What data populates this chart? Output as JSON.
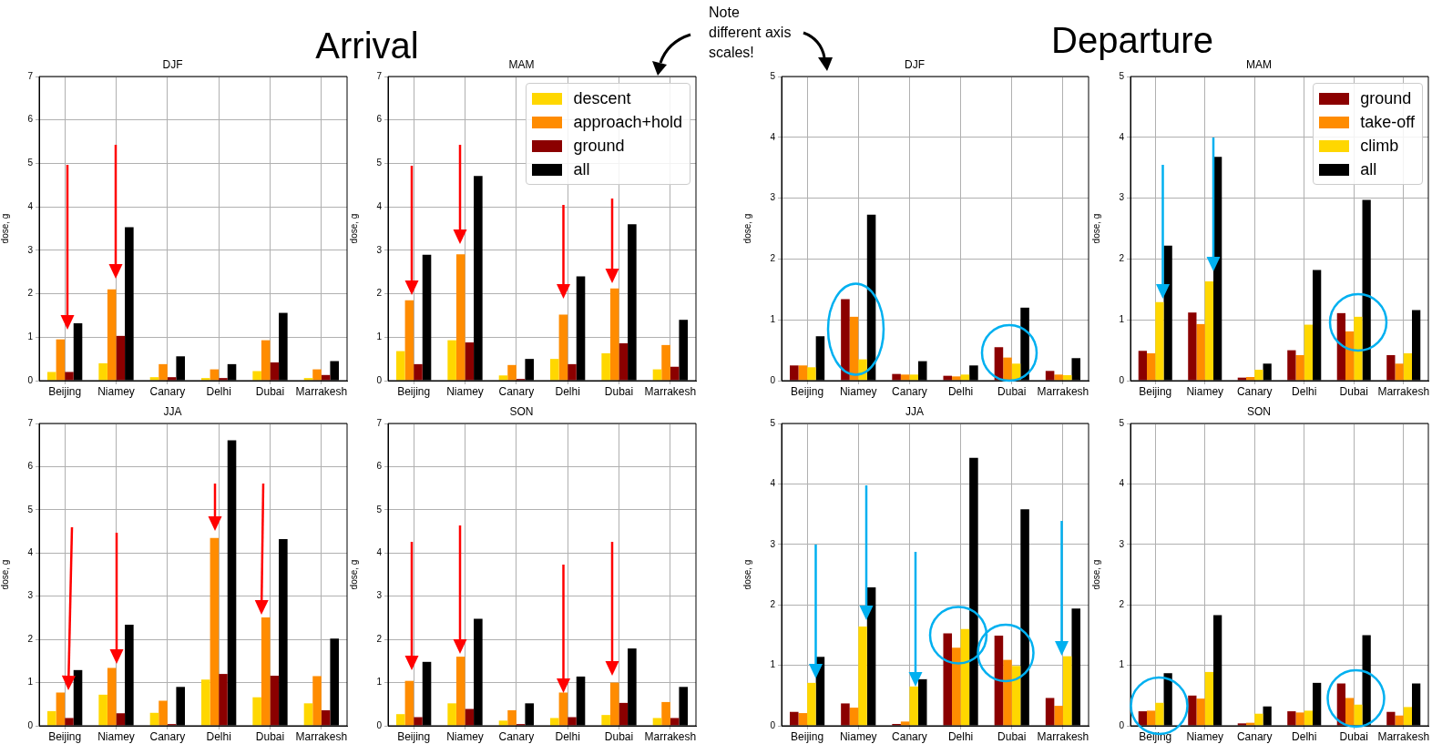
{
  "chart_data": [
    {
      "type": "bar",
      "title": "DJF",
      "ylabel": "dose, g",
      "categories": [
        "Beijing",
        "Niamey",
        "Canary",
        "Delhi",
        "Dubai",
        "Marrakesh"
      ],
      "ylim": [
        0,
        7
      ],
      "yticks": [
        0,
        1,
        2,
        3,
        4,
        5,
        6,
        7
      ],
      "grid": true,
      "annotations": [
        "Arrival"
      ],
      "series": [
        {
          "color": "#ffd700",
          "values": [
            0.2,
            0.4,
            0.08,
            0.06,
            0.22,
            0.06
          ]
        },
        {
          "color": "#ff8c00",
          "values": [
            0.95,
            2.1,
            0.38,
            0.26,
            0.93,
            0.26
          ]
        },
        {
          "color": "#8b0000",
          "values": [
            0.2,
            1.03,
            0.08,
            0.06,
            0.42,
            0.13
          ]
        },
        {
          "color": "#000000",
          "values": [
            1.32,
            3.53,
            0.56,
            0.38,
            1.56,
            0.45
          ]
        }
      ]
    },
    {
      "type": "bar",
      "title": "MAM",
      "ylabel": "dose, g",
      "categories": [
        "Beijing",
        "Niamey",
        "Canary",
        "Delhi",
        "Dubai",
        "Marrakesh"
      ],
      "ylim": [
        0,
        7
      ],
      "yticks": [
        0,
        1,
        2,
        3,
        4,
        5,
        6,
        7
      ],
      "grid": true,
      "legend": "top right",
      "annotations": [
        "Note different axis scales!"
      ],
      "series": [
        {
          "name": "descent",
          "color": "#ffd700",
          "values": [
            0.68,
            0.93,
            0.12,
            0.5,
            0.63,
            0.26
          ]
        },
        {
          "name": "approach+hold",
          "color": "#ff8c00",
          "values": [
            1.85,
            2.91,
            0.36,
            1.52,
            2.12,
            0.82
          ]
        },
        {
          "name": "ground",
          "color": "#8b0000",
          "values": [
            0.38,
            0.88,
            0.04,
            0.38,
            0.86,
            0.32
          ]
        },
        {
          "name": "all",
          "color": "#000000",
          "values": [
            2.9,
            4.71,
            0.5,
            2.4,
            3.6,
            1.4
          ]
        }
      ]
    },
    {
      "type": "bar",
      "title": "DJF",
      "ylabel": "dose, g",
      "categories": [
        "Beijing",
        "Niamey",
        "Canary",
        "Delhi",
        "Dubai",
        "Marrakesh"
      ],
      "ylim": [
        0,
        5
      ],
      "yticks": [
        0,
        1,
        2,
        3,
        4,
        5
      ],
      "grid": true,
      "annotations": [
        "Departure"
      ],
      "series": [
        {
          "color": "#8b0000",
          "values": [
            0.25,
            1.34,
            0.11,
            0.08,
            0.55,
            0.16
          ]
        },
        {
          "color": "#ff8c00",
          "values": [
            0.25,
            1.05,
            0.1,
            0.07,
            0.38,
            0.1
          ]
        },
        {
          "color": "#ffd700",
          "values": [
            0.22,
            0.35,
            0.1,
            0.1,
            0.28,
            0.09
          ]
        },
        {
          "color": "#000000",
          "values": [
            0.73,
            2.73,
            0.32,
            0.25,
            1.2,
            0.37
          ]
        }
      ]
    },
    {
      "type": "bar",
      "title": "MAM",
      "ylabel": "dose, g",
      "categories": [
        "Beijing",
        "Niamey",
        "Canary",
        "Delhi",
        "Dubai",
        "Marrakesh"
      ],
      "ylim": [
        0,
        5
      ],
      "yticks": [
        0,
        1,
        2,
        3,
        4,
        5
      ],
      "grid": true,
      "legend": "top right",
      "series": [
        {
          "name": "ground",
          "color": "#8b0000",
          "values": [
            0.49,
            1.12,
            0.05,
            0.5,
            1.11,
            0.42
          ]
        },
        {
          "name": "take-off",
          "color": "#ff8c00",
          "values": [
            0.45,
            0.93,
            0.06,
            0.42,
            0.81,
            0.28
          ]
        },
        {
          "name": "climb",
          "color": "#ffd700",
          "values": [
            1.29,
            1.63,
            0.18,
            0.92,
            1.05,
            0.45
          ]
        },
        {
          "name": "all",
          "color": "#000000",
          "values": [
            2.22,
            3.68,
            0.28,
            1.82,
            2.97,
            1.16
          ]
        }
      ]
    },
    {
      "type": "bar",
      "title": "JJA",
      "ylabel": "dose, g",
      "categories": [
        "Beijing",
        "Niamey",
        "Canary",
        "Delhi",
        "Dubai",
        "Marrakesh"
      ],
      "ylim": [
        0,
        7
      ],
      "yticks": [
        0,
        1,
        2,
        3,
        4,
        5,
        6,
        7
      ],
      "grid": true,
      "series": [
        {
          "color": "#ffd700",
          "values": [
            0.34,
            0.72,
            0.3,
            1.07,
            0.66,
            0.52
          ]
        },
        {
          "color": "#ff8c00",
          "values": [
            0.77,
            1.34,
            0.58,
            4.35,
            2.51,
            1.15
          ]
        },
        {
          "color": "#8b0000",
          "values": [
            0.18,
            0.29,
            0.04,
            1.2,
            1.16,
            0.36
          ]
        },
        {
          "color": "#000000",
          "values": [
            1.29,
            2.34,
            0.9,
            6.61,
            4.32,
            2.02
          ]
        }
      ]
    },
    {
      "type": "bar",
      "title": "SON",
      "ylabel": "dose, g",
      "categories": [
        "Beijing",
        "Niamey",
        "Canary",
        "Delhi",
        "Dubai",
        "Marrakesh"
      ],
      "ylim": [
        0,
        7
      ],
      "yticks": [
        0,
        1,
        2,
        3,
        4,
        5,
        6,
        7
      ],
      "grid": true,
      "series": [
        {
          "color": "#ffd700",
          "values": [
            0.27,
            0.52,
            0.12,
            0.18,
            0.25,
            0.18
          ]
        },
        {
          "color": "#ff8c00",
          "values": [
            1.04,
            1.6,
            0.36,
            0.77,
            1.0,
            0.55
          ]
        },
        {
          "color": "#8b0000",
          "values": [
            0.2,
            0.39,
            0.04,
            0.2,
            0.53,
            0.18
          ]
        },
        {
          "color": "#000000",
          "values": [
            1.48,
            2.48,
            0.52,
            1.14,
            1.79,
            0.9
          ]
        }
      ]
    },
    {
      "type": "bar",
      "title": "JJA",
      "ylabel": "dose, g",
      "categories": [
        "Beijing",
        "Niamey",
        "Canary",
        "Delhi",
        "Dubai",
        "Marrakesh"
      ],
      "ylim": [
        0,
        5
      ],
      "yticks": [
        0,
        1,
        2,
        3,
        4,
        5
      ],
      "grid": true,
      "series": [
        {
          "color": "#8b0000",
          "values": [
            0.23,
            0.37,
            0.03,
            1.53,
            1.49,
            0.46
          ]
        },
        {
          "color": "#ff8c00",
          "values": [
            0.21,
            0.3,
            0.07,
            1.29,
            1.09,
            0.33
          ]
        },
        {
          "color": "#ffd700",
          "values": [
            0.71,
            1.64,
            0.65,
            1.6,
            0.99,
            1.15
          ]
        },
        {
          "color": "#000000",
          "values": [
            1.14,
            2.29,
            0.77,
            4.43,
            3.58,
            1.94
          ]
        }
      ]
    },
    {
      "type": "bar",
      "title": "SON",
      "ylabel": "dose, g",
      "categories": [
        "Beijing",
        "Niamey",
        "Canary",
        "Delhi",
        "Dubai",
        "Marrakesh"
      ],
      "ylim": [
        0,
        5
      ],
      "yticks": [
        0,
        1,
        2,
        3,
        4,
        5
      ],
      "grid": true,
      "series": [
        {
          "color": "#8b0000",
          "values": [
            0.24,
            0.5,
            0.04,
            0.24,
            0.7,
            0.23
          ]
        },
        {
          "color": "#ff8c00",
          "values": [
            0.25,
            0.45,
            0.05,
            0.22,
            0.46,
            0.17
          ]
        },
        {
          "color": "#ffd700",
          "values": [
            0.38,
            0.89,
            0.2,
            0.25,
            0.35,
            0.31
          ]
        },
        {
          "color": "#000000",
          "values": [
            0.87,
            1.83,
            0.32,
            0.71,
            1.5,
            0.7
          ]
        }
      ]
    }
  ]
}
